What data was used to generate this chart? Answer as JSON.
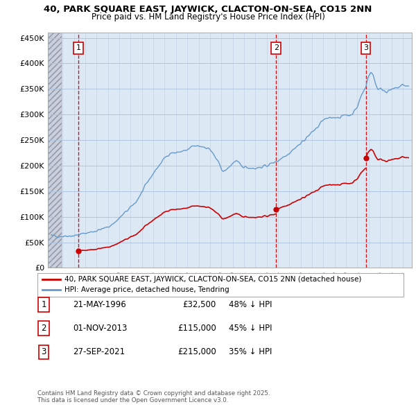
{
  "title": "40, PARK SQUARE EAST, JAYWICK, CLACTON-ON-SEA, CO15 2NN",
  "subtitle": "Price paid vs. HM Land Registry's House Price Index (HPI)",
  "ytick_values": [
    0,
    50000,
    100000,
    150000,
    200000,
    250000,
    300000,
    350000,
    400000,
    450000
  ],
  "ylabel_ticks": [
    "£0",
    "£50K",
    "£100K",
    "£150K",
    "£200K",
    "£250K",
    "£300K",
    "£350K",
    "£400K",
    "£450K"
  ],
  "ylim": [
    0,
    460000
  ],
  "xlim_start": 1993.7,
  "xlim_end": 2025.8,
  "sale_events": [
    {
      "num": 1,
      "date": "21-MAY-1996",
      "year": 1996.38,
      "price": 32500,
      "pct": "48%",
      "direction": "↓"
    },
    {
      "num": 2,
      "date": "01-NOV-2013",
      "year": 2013.83,
      "price": 115000,
      "pct": "45%",
      "direction": "↓"
    },
    {
      "num": 3,
      "date": "27-SEP-2021",
      "year": 2021.74,
      "price": 215000,
      "pct": "35%",
      "direction": "↓"
    }
  ],
  "legend_label_red": "40, PARK SQUARE EAST, JAYWICK, CLACTON-ON-SEA, CO15 2NN (detached house)",
  "legend_label_blue": "HPI: Average price, detached house, Tendring",
  "footer1": "Contains HM Land Registry data © Crown copyright and database right 2025.",
  "footer2": "This data is licensed under the Open Government Licence v3.0.",
  "red_color": "#cc0000",
  "blue_color": "#6699cc",
  "vline_color": "#cc0000",
  "plot_bg": "#dce9f5",
  "grid_color": "#b0c4de",
  "hatch_color": "#c8d0dc"
}
